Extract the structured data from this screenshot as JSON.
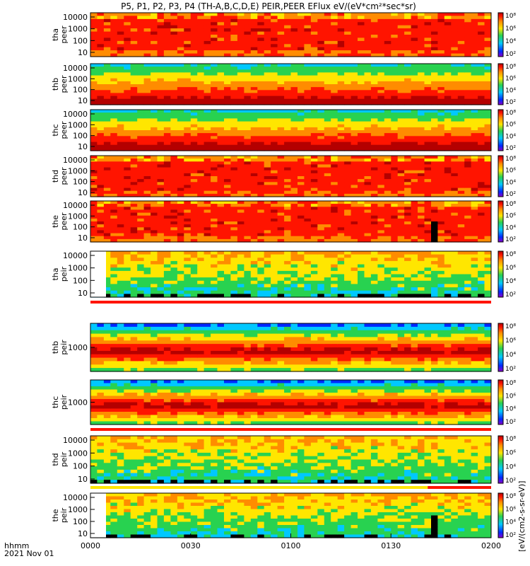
{
  "title": "P5, P1, P2, P3, P4 (TH-A,B,C,D,E) PEIR,PEER EFlux eV/(eV*cm²*sec*sr)",
  "x_axis": {
    "label_line1": "hhmm",
    "label_line2": "2021 Nov 01",
    "ticks": [
      "0000",
      "0030",
      "0100",
      "0130",
      "0200"
    ]
  },
  "colorbar_unit_label": "[eV/(cm2-s-sr-eV)]",
  "chart_data": {
    "type": "heatmap",
    "x_range_minutes": [
      0,
      120
    ],
    "colors": {
      "dark_red": "#b40000",
      "red": "#ff1400",
      "orange": "#ff8c00",
      "yellow": "#ffe600",
      "green": "#28d250",
      "cyan": "#00c8ff",
      "blue": "#0028ff",
      "purple": "#8c00c8",
      "black": "#000000"
    },
    "panels": [
      {
        "probe": "tha",
        "species": "peer",
        "y_ticks": [
          "10000",
          "1000",
          "100",
          "10"
        ],
        "colorbar_ticks": [
          "10⁸",
          "10⁶",
          "10⁴",
          "10²"
        ],
        "scale": "log",
        "pattern": "electron-active"
      },
      {
        "probe": "thb",
        "species": "peer",
        "y_ticks": [
          "10000",
          "1000",
          "100",
          "10"
        ],
        "colorbar_ticks": [
          "10⁸",
          "10⁶",
          "10⁴",
          "10²"
        ],
        "scale": "log",
        "pattern": "electron-quiet"
      },
      {
        "probe": "thc",
        "species": "peer",
        "y_ticks": [
          "10000",
          "1000",
          "100",
          "10"
        ],
        "colorbar_ticks": [
          "10⁸",
          "10⁶",
          "10⁴",
          "10²"
        ],
        "scale": "log",
        "pattern": "electron-quiet"
      },
      {
        "probe": "thd",
        "species": "peer",
        "y_ticks": [
          "10000",
          "1000",
          "100",
          "10"
        ],
        "colorbar_ticks": [
          "10⁸",
          "10⁶",
          "10⁴",
          "10²"
        ],
        "scale": "log",
        "pattern": "electron-active"
      },
      {
        "probe": "the",
        "species": "peer",
        "y_ticks": [
          "10000",
          "1000",
          "100",
          "10"
        ],
        "colorbar_ticks": [
          "10⁸",
          "10⁶",
          "10⁴",
          "10²"
        ],
        "scale": "log",
        "pattern": "electron-active",
        "data_gap_minutes": [
          101,
          104
        ]
      },
      {
        "probe": "tha",
        "species": "peir",
        "y_ticks": [
          "10000",
          "1000",
          "100",
          "10"
        ],
        "colorbar_ticks": [
          "10⁸",
          "10⁶",
          "10⁴",
          "10²"
        ],
        "scale": "log",
        "pattern": "ion",
        "mode_bar": [
          "red"
        ]
      },
      {
        "probe": "thb",
        "species": "peir",
        "y_ticks": [
          "1000"
        ],
        "colorbar_ticks": [
          "10⁸",
          "10⁶",
          "10⁴",
          "10²"
        ],
        "scale": "log",
        "pattern": "ion-banded"
      },
      {
        "probe": "thc",
        "species": "peir",
        "y_ticks": [
          "1000"
        ],
        "colorbar_ticks": [
          "10⁸",
          "10⁶",
          "10⁴",
          "10²"
        ],
        "scale": "log",
        "pattern": "ion-banded",
        "mode_bar": [
          "red"
        ]
      },
      {
        "probe": "thd",
        "species": "peir",
        "y_ticks": [
          "10000",
          "1000",
          "100",
          "10"
        ],
        "colorbar_ticks": [
          "10⁸",
          "10⁶",
          "10⁴",
          "10²"
        ],
        "scale": "log",
        "pattern": "ion",
        "mode_bar": [
          "yellow",
          "red"
        ],
        "mode_change_minute": 101
      },
      {
        "probe": "the",
        "species": "peir",
        "y_ticks": [
          "10000",
          "1000",
          "100",
          "10"
        ],
        "colorbar_ticks": [
          "10⁸",
          "10⁶",
          "10⁴",
          "10²"
        ],
        "scale": "log",
        "pattern": "ion",
        "data_gap_minutes": [
          101,
          104
        ]
      }
    ]
  }
}
